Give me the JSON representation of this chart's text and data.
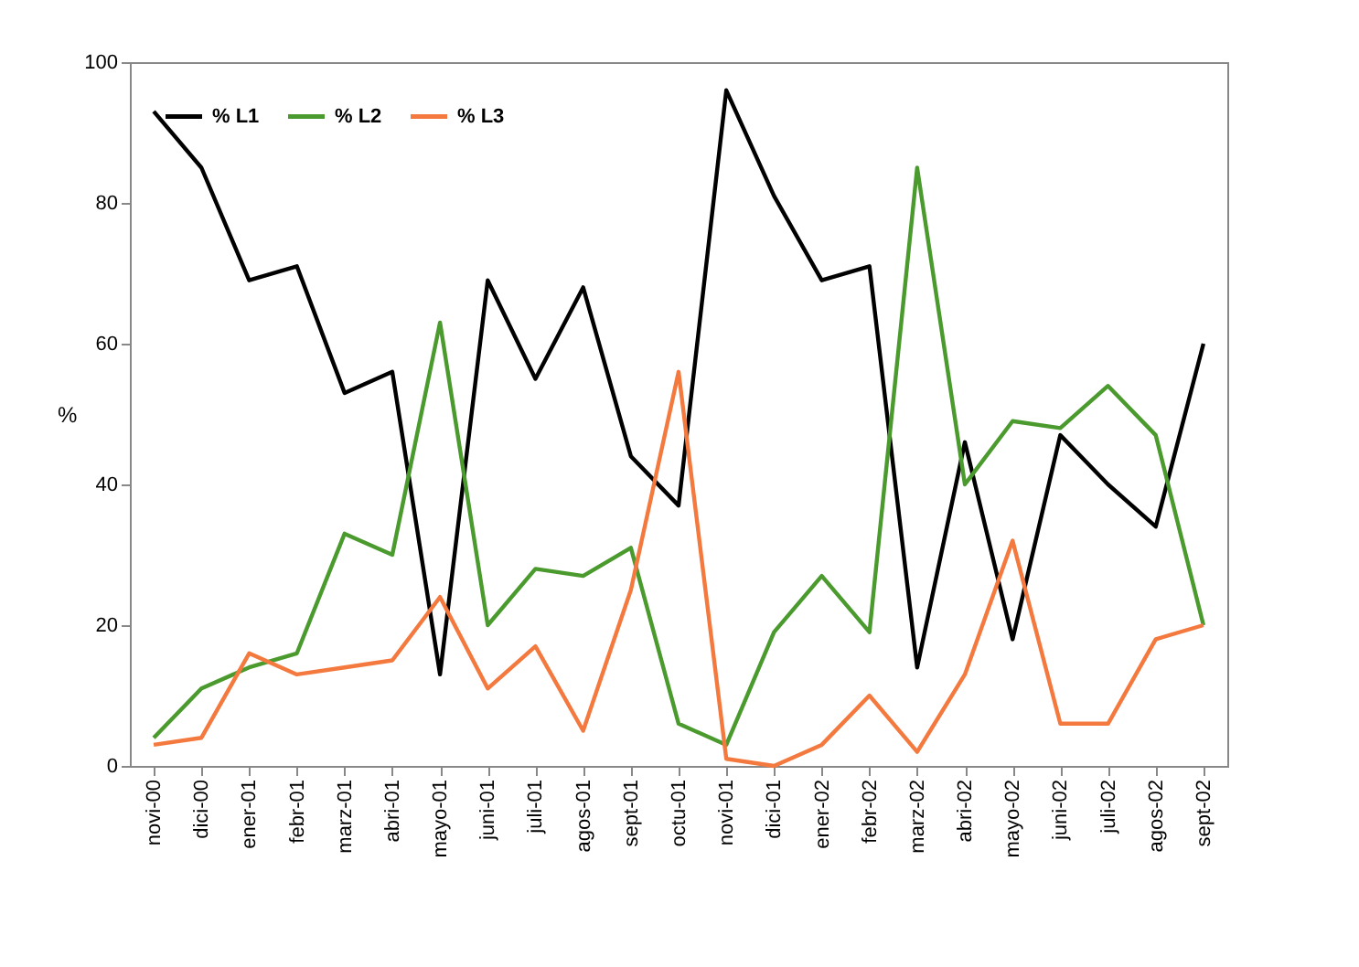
{
  "chart_data": {
    "type": "line",
    "ylabel": "%",
    "categories": [
      "novi-00",
      "dici-00",
      "ener-01",
      "febr-01",
      "marz-01",
      "abri-01",
      "mayo-01",
      "juni-01",
      "juli-01",
      "agos-01",
      "sept-01",
      "octu-01",
      "novi-01",
      "dici-01",
      "ener-02",
      "febr-02",
      "marz-02",
      "abri-02",
      "mayo-02",
      "juni-02",
      "juli-02",
      "agos-02",
      "sept-02"
    ],
    "series": [
      {
        "name": "% L1",
        "color": "#000000",
        "values": [
          93,
          85,
          69,
          71,
          53,
          56,
          13,
          69,
          55,
          68,
          44,
          37,
          96,
          81,
          69,
          71,
          14,
          46,
          18,
          47,
          40,
          34,
          60
        ]
      },
      {
        "name": "% L2",
        "color": "#4a9a2e",
        "values": [
          4,
          11,
          14,
          16,
          33,
          30,
          63,
          20,
          28,
          27,
          31,
          6,
          3,
          19,
          27,
          19,
          85,
          40,
          49,
          48,
          54,
          47,
          20
        ]
      },
      {
        "name": "% L3",
        "color": "#f4793e",
        "values": [
          3,
          4,
          16,
          13,
          14,
          15,
          24,
          11,
          17,
          5,
          25,
          56,
          1,
          0,
          3,
          10,
          2,
          13,
          32,
          6,
          6,
          18,
          20
        ]
      }
    ],
    "ylim": [
      0,
      100
    ],
    "yticks": [
      0,
      20,
      40,
      60,
      80,
      100
    ],
    "legend": "top left",
    "marker": "none",
    "line_style": "solid"
  }
}
